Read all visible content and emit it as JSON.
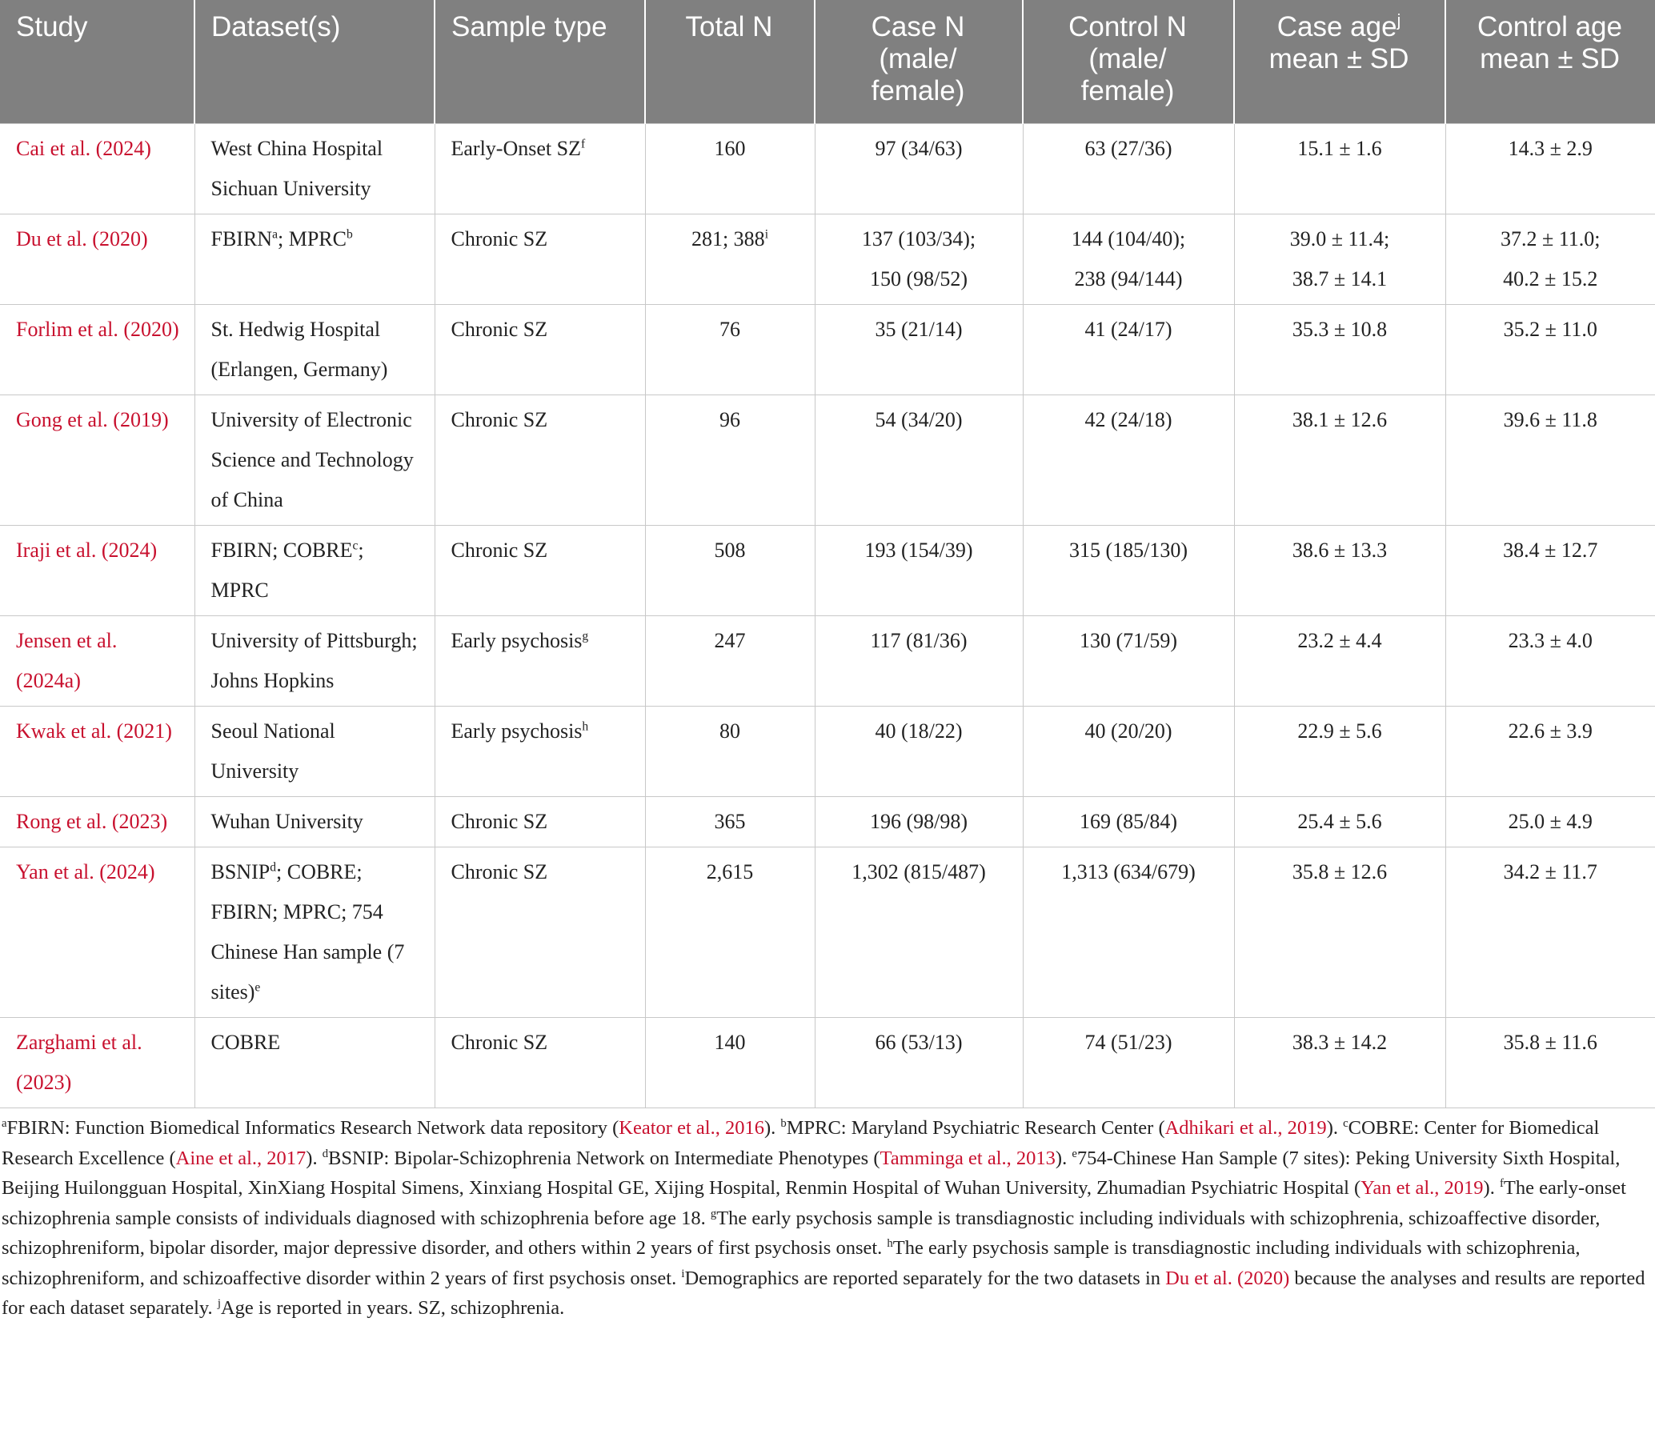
{
  "table": {
    "header": [
      "Study",
      "Dataset(s)",
      "Sample type",
      "Total N",
      "Case N\n(male/\nfemale)",
      "Control N\n(male/\nfemale)",
      [
        "Case age",
        {
          "sup": "j"
        },
        "\nmean ± SD"
      ],
      "Control age\nmean ± SD"
    ],
    "rows": [
      [
        "Cai et al. (2024)",
        "West China Hospital Sichuan University",
        [
          "Early-Onset SZ",
          {
            "sup": "f"
          }
        ],
        160,
        "97 (34/63)",
        "63 (27/36)",
        "15.1 ± 1.6",
        "14.3 ± 2.9"
      ],
      [
        "Du et al. (2020)",
        [
          "FBIRN",
          {
            "sup": "a"
          },
          "; MPRC",
          {
            "sup": "b"
          }
        ],
        "Chronic SZ",
        [
          "281; 388",
          {
            "sup": "i"
          }
        ],
        "137 (103/34);\n150 (98/52)",
        "144 (104/40);\n238 (94/144)",
        "39.0 ± 11.4;\n38.7 ± 14.1",
        "37.2 ± 11.0;\n40.2 ± 15.2"
      ],
      [
        "Forlim et al. (2020)",
        "St. Hedwig Hospital (Erlangen, Germany)",
        "Chronic SZ",
        76,
        "35 (21/14)",
        "41 (24/17)",
        "35.3 ± 10.8",
        "35.2 ± 11.0"
      ],
      [
        "Gong et al. (2019)",
        "University of Electronic Science and Technology of China",
        "Chronic SZ",
        96,
        "54 (34/20)",
        "42 (24/18)",
        "38.1 ± 12.6",
        "39.6 ± 11.8"
      ],
      [
        "Iraji et al. (2024)",
        [
          "FBIRN; COBRE",
          {
            "sup": "c"
          },
          "; MPRC"
        ],
        "Chronic SZ",
        508,
        "193 (154/39)",
        "315 (185/130)",
        "38.6 ± 13.3",
        "38.4 ± 12.7"
      ],
      [
        "Jensen et al. (2024a)",
        "University of Pittsburgh; Johns Hopkins",
        [
          "Early psychosis",
          {
            "sup": "g"
          }
        ],
        247,
        "117 (81/36)",
        "130 (71/59)",
        "23.2 ± 4.4",
        "23.3 ± 4.0"
      ],
      [
        "Kwak et al. (2021)",
        "Seoul National University",
        [
          "Early psychosis",
          {
            "sup": "h"
          }
        ],
        80,
        "40 (18/22)",
        "40 (20/20)",
        "22.9 ± 5.6",
        "22.6 ± 3.9"
      ],
      [
        "Rong et al. (2023)",
        "Wuhan University",
        "Chronic SZ",
        365,
        "196 (98/98)",
        "169 (85/84)",
        "25.4 ± 5.6",
        "25.0 ± 4.9"
      ],
      [
        "Yan et al. (2024)",
        [
          "BSNIP",
          {
            "sup": "d"
          },
          "; COBRE; FBIRN; MPRC; 754 Chinese Han sample (7 sites)",
          {
            "sup": "e"
          }
        ],
        "Chronic SZ",
        "2,615",
        "1,302 (815/487)",
        "1,313 (634/679)",
        "35.8 ± 12.6",
        "34.2 ± 11.7"
      ],
      [
        "Zarghami et al. (2023)",
        "COBRE",
        "Chronic SZ",
        140,
        "66 (53/13)",
        "74 (51/23)",
        "38.3 ± 14.2",
        "35.8 ± 11.6"
      ]
    ]
  },
  "footnote": [
    {
      "sup": "a"
    },
    "FBIRN: Function Biomedical Informatics Research Network data repository (",
    {
      "cite": "Keator et al., 2016"
    },
    "). ",
    {
      "sup": "b"
    },
    "MPRC: Maryland Psychiatric Research Center (",
    {
      "cite": "Adhikari et al., 2019"
    },
    "). ",
    {
      "sup": "c"
    },
    "COBRE: Center for Biomedical Research Excellence (",
    {
      "cite": "Aine et al., 2017"
    },
    "). ",
    {
      "sup": "d"
    },
    "BSNIP: Bipolar-Schizophrenia Network on Intermediate Phenotypes (",
    {
      "cite": "Tamminga et al., 2013"
    },
    "). ",
    {
      "sup": "e"
    },
    "754-Chinese Han Sample (7 sites): Peking University Sixth Hospital, Beijing Huilongguan Hospital, XinXiang Hospital Simens, Xinxiang Hospital GE, Xijing Hospital, Renmin Hospital of Wuhan University, Zhumadian Psychiatric Hospital (",
    {
      "cite": "Yan et al., 2019"
    },
    "). ",
    {
      "sup": "f"
    },
    "The early-onset schizophrenia sample consists of individuals diagnosed with schizophrenia before age 18. ",
    {
      "sup": "g"
    },
    "The early psychosis sample is transdiagnostic including individuals with schizophrenia, schizoaffective disorder, schizophreniform, bipolar disorder, major depressive disorder, and others within 2 years of first psychosis onset. ",
    {
      "sup": "h"
    },
    "The early psychosis sample is transdiagnostic including individuals with schizophrenia, schizophreniform, and schizoaffective disorder within 2 years of first psychosis onset. ",
    {
      "sup": "i"
    },
    "Demographics are reported separately for the two datasets in ",
    {
      "cite": "Du et al. (2020)"
    },
    " because the analyses and results are reported for each dataset separately. ",
    {
      "sup": "j"
    },
    "Age is reported in years. SZ, schizophrenia."
  ]
}
